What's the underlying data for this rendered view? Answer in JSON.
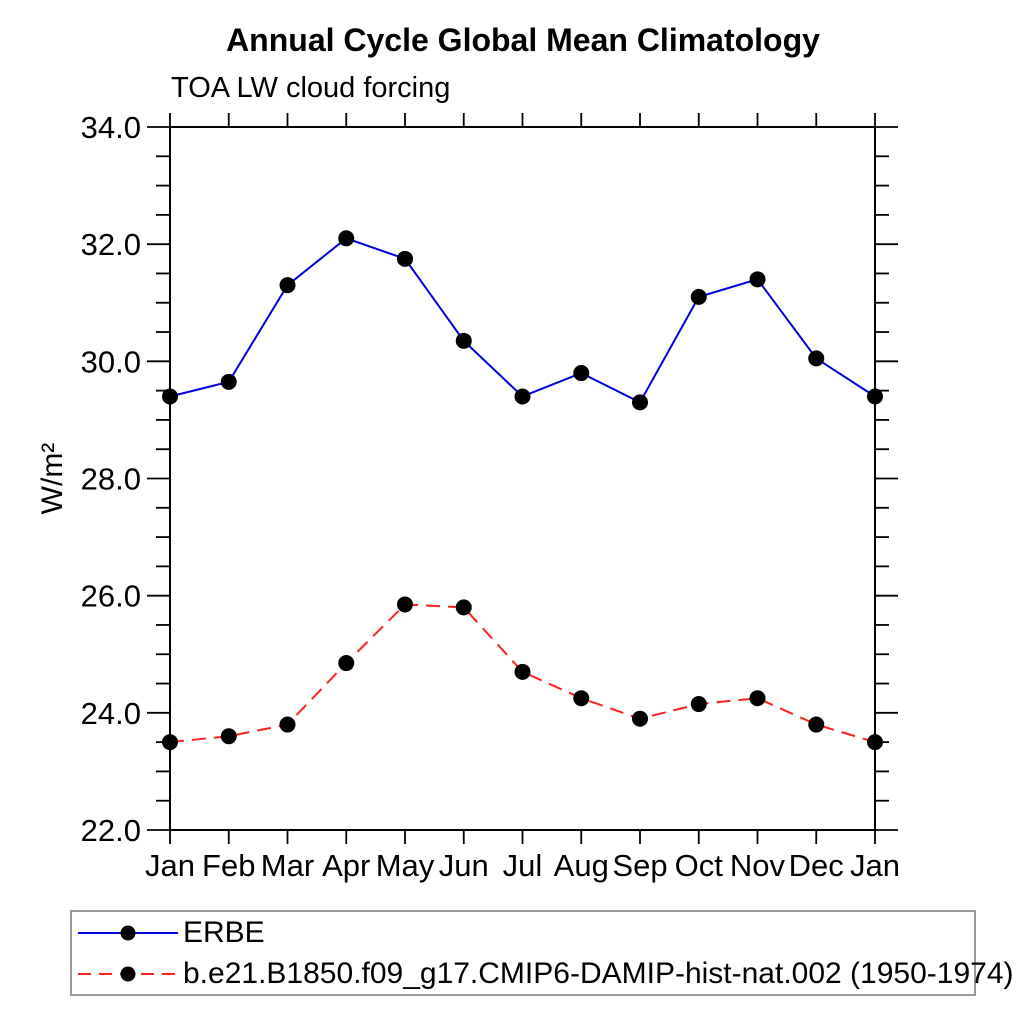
{
  "header": {
    "title": "Annual Cycle Global Mean Climatology",
    "subtitle": "TOA LW cloud forcing"
  },
  "chart_data": {
    "type": "line",
    "title": "Annual Cycle Global Mean Climatology",
    "subtitle": "TOA LW cloud forcing",
    "xlabel": "",
    "ylabel": "W/m²",
    "ylim": [
      22.0,
      34.0
    ],
    "ytick_major_step": 2.0,
    "ytick_minor_step": 0.5,
    "ytick_labels": [
      "22.0",
      "24.0",
      "26.0",
      "28.0",
      "30.0",
      "32.0",
      "34.0"
    ],
    "categories": [
      "Jan",
      "Feb",
      "Mar",
      "Apr",
      "May",
      "Jun",
      "Jul",
      "Aug",
      "Sep",
      "Oct",
      "Nov",
      "Dec",
      "Jan"
    ],
    "grid": false,
    "legend_position": "bottom-left",
    "axis_color": "#000000",
    "marker_radius": 8,
    "series": [
      {
        "name": "ERBE",
        "color": "#0000e0",
        "style": "solid",
        "marker": "circle",
        "marker_color": "#000000",
        "values": [
          29.4,
          29.65,
          31.3,
          32.1,
          31.75,
          30.35,
          29.4,
          29.8,
          29.3,
          31.1,
          31.4,
          30.05,
          29.4
        ]
      },
      {
        "name": "b.e21.B1850.f09_g17.CMIP6-DAMIP-hist-nat.002 (1950-1974)",
        "color": "#ff2020",
        "style": "dashed",
        "marker": "circle",
        "marker_color": "#000000",
        "values": [
          23.5,
          23.6,
          23.8,
          24.85,
          25.85,
          25.8,
          24.7,
          24.25,
          23.9,
          24.15,
          24.25,
          23.8,
          23.5
        ]
      }
    ]
  }
}
